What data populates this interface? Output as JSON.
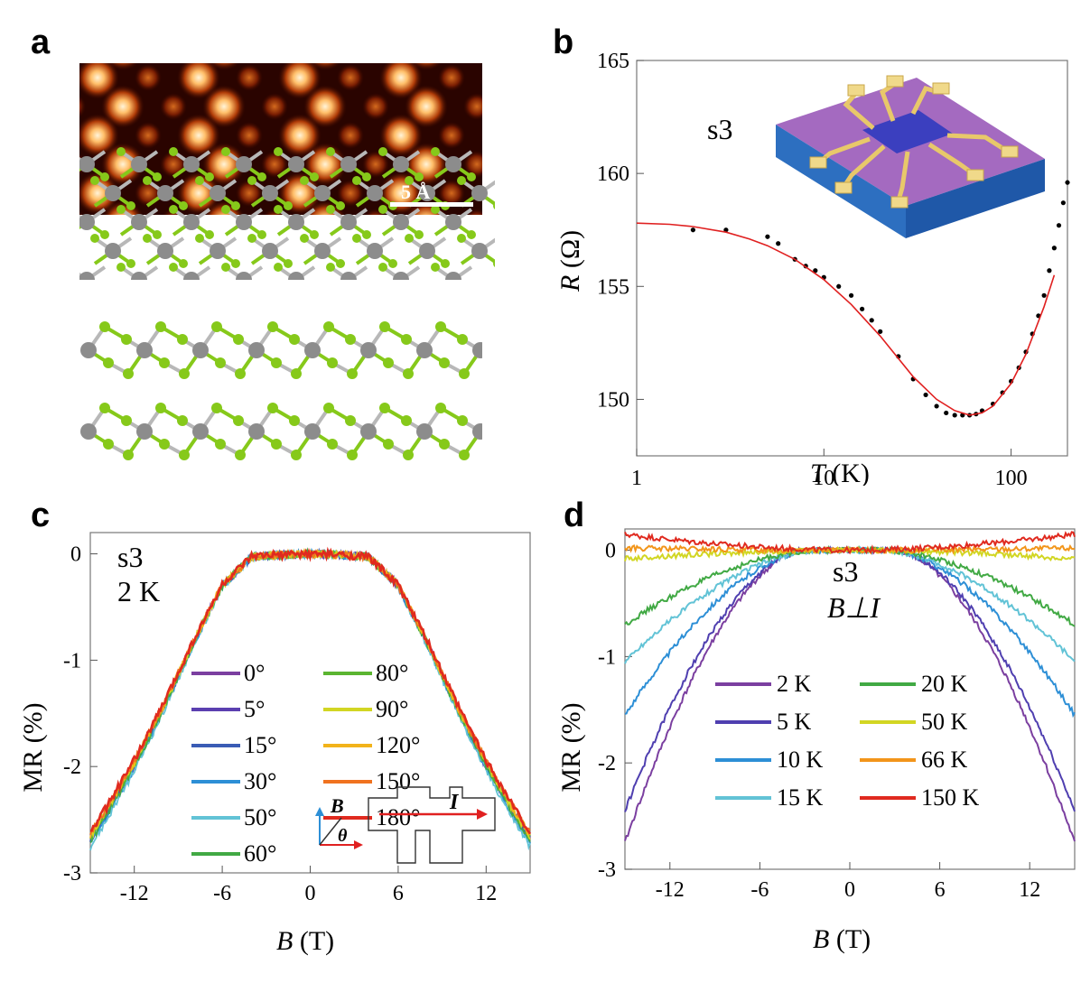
{
  "panels": {
    "a": "a",
    "b": "b",
    "c": "c",
    "d": "d"
  },
  "panel_a": {
    "scale_bar_label": "5 Å",
    "colors": {
      "stm_dark": "#2a0400",
      "stm_bright": "#ffd9a0",
      "atom_metal": "#8c8c8c",
      "atom_chalcogen": "#86c91a",
      "bond": "#b8b8b8"
    }
  },
  "chart_data": [
    {
      "panel": "b",
      "type": "line",
      "xlabel_italic": "T",
      "xlabel_unit": " (K)",
      "ylabel_italic": "R",
      "ylabel_unit": " (Ω)",
      "xscale": "log",
      "xlim": [
        1,
        200
      ],
      "ylim": [
        147.5,
        165
      ],
      "xticks": [
        1,
        10,
        100
      ],
      "xtick_labels": [
        "1",
        "10",
        "100"
      ],
      "yticks": [
        150,
        155,
        160,
        165
      ],
      "ytick_labels": [
        "150",
        "155",
        "160",
        "165"
      ],
      "annotation": "s3",
      "series": [
        {
          "kind": "points",
          "color": "#000000",
          "x": [
            2,
            3,
            5,
            5.7,
            7,
            8,
            9,
            10,
            12,
            14,
            16,
            18,
            20,
            25,
            30,
            35,
            40,
            45,
            50,
            55,
            60,
            65,
            70,
            80,
            90,
            100,
            110,
            120,
            130,
            140,
            150,
            160,
            170,
            180,
            190,
            200
          ],
          "y": [
            157.5,
            157.5,
            157.2,
            156.9,
            156.2,
            155.9,
            155.7,
            155.4,
            155.0,
            154.6,
            154.0,
            153.5,
            153.0,
            151.9,
            150.9,
            150.2,
            149.7,
            149.4,
            149.3,
            149.3,
            149.3,
            149.35,
            149.5,
            149.8,
            150.3,
            150.8,
            151.4,
            152.1,
            152.9,
            153.7,
            154.6,
            155.7,
            156.7,
            157.7,
            158.7,
            159.6
          ]
        },
        {
          "kind": "fit",
          "color": "#e02020",
          "x": [
            1,
            1.5,
            2,
            3,
            4,
            5,
            7,
            10,
            14,
            20,
            30,
            40,
            50,
            60,
            70,
            80,
            100,
            120,
            150,
            170
          ],
          "y": [
            157.8,
            157.75,
            157.65,
            157.4,
            157.1,
            156.8,
            156.2,
            155.3,
            154.2,
            152.8,
            151.0,
            150.0,
            149.5,
            149.3,
            149.4,
            149.7,
            150.7,
            152.0,
            154.1,
            155.5
          ]
        }
      ]
    },
    {
      "panel": "c",
      "type": "line",
      "xlabel_italic": "B",
      "xlabel_unit": " (T)",
      "ylabel": "MR (%)",
      "xlim": [
        -15,
        15
      ],
      "ylim": [
        -3,
        0.2
      ],
      "xticks": [
        -12,
        -6,
        0,
        6,
        12
      ],
      "xtick_labels": [
        "-12",
        "-6",
        "0",
        "6",
        "12"
      ],
      "yticks": [
        0,
        -1,
        -2,
        -3
      ],
      "ytick_labels": [
        "0",
        "-1",
        "-2",
        "-3"
      ],
      "annotation": [
        "s3",
        "2 K"
      ],
      "inset_labels": {
        "field": "B",
        "angle": "θ",
        "current": "I"
      },
      "shape": {
        "B": [
          0,
          2,
          4,
          6,
          8,
          10,
          12,
          14,
          15
        ],
        "MR": [
          0,
          -0.01,
          -0.03,
          -0.3,
          -0.85,
          -1.45,
          -2.0,
          -2.48,
          -2.7
        ]
      },
      "series": [
        {
          "name": "0°",
          "color": "#7b3fa0",
          "scale": 0.99
        },
        {
          "name": "5°",
          "color": "#5b3fb0",
          "scale": 0.995
        },
        {
          "name": "15°",
          "color": "#3a5cb5",
          "scale": 1.0
        },
        {
          "name": "30°",
          "color": "#2d8fd6",
          "scale": 1.01
        },
        {
          "name": "50°",
          "color": "#62c3d6",
          "scale": 1.02
        },
        {
          "name": "60°",
          "color": "#41a944",
          "scale": 1.0
        },
        {
          "name": "80°",
          "color": "#5bb531",
          "scale": 0.99
        },
        {
          "name": "90°",
          "color": "#d2d623",
          "scale": 0.985
        },
        {
          "name": "120°",
          "color": "#f2b31a",
          "scale": 0.98
        },
        {
          "name": "150°",
          "color": "#f0721f",
          "scale": 0.975
        },
        {
          "name": "180°",
          "color": "#e02a1f",
          "scale": 0.97
        }
      ]
    },
    {
      "panel": "d",
      "type": "line",
      "xlabel_italic": "B",
      "xlabel_unit": " (T)",
      "ylabel": "MR (%)",
      "xlim": [
        -15,
        15
      ],
      "ylim": [
        -3,
        0.2
      ],
      "xticks": [
        -12,
        -6,
        0,
        6,
        12
      ],
      "xtick_labels": [
        "-12",
        "-6",
        "0",
        "6",
        "12"
      ],
      "yticks": [
        0,
        -1,
        -2,
        -3
      ],
      "ytick_labels": [
        "0",
        "-1",
        "-2",
        "-3"
      ],
      "annotation": [
        "s3",
        "B⊥I"
      ],
      "series": [
        {
          "name": "2 K",
          "color": "#7b3fa0",
          "at15": -2.75,
          "flat": 3
        },
        {
          "name": "5 K",
          "color": "#4f3fb0",
          "at15": -2.45,
          "flat": 3
        },
        {
          "name": "10 K",
          "color": "#2d8fd6",
          "at15": -1.55,
          "flat": 2.5
        },
        {
          "name": "15 K",
          "color": "#62c3d6",
          "at15": -1.05,
          "flat": 2
        },
        {
          "name": "20 K",
          "color": "#41a944",
          "at15": -0.7,
          "flat": 2
        },
        {
          "name": "50 K",
          "color": "#d2d623",
          "at15": -0.08,
          "flat": 0
        },
        {
          "name": "66 K",
          "color": "#f2951a",
          "at15": 0.02,
          "flat": 0
        },
        {
          "name": "150 K",
          "color": "#e02a1f",
          "at15": 0.15,
          "flat": 0
        }
      ]
    }
  ]
}
